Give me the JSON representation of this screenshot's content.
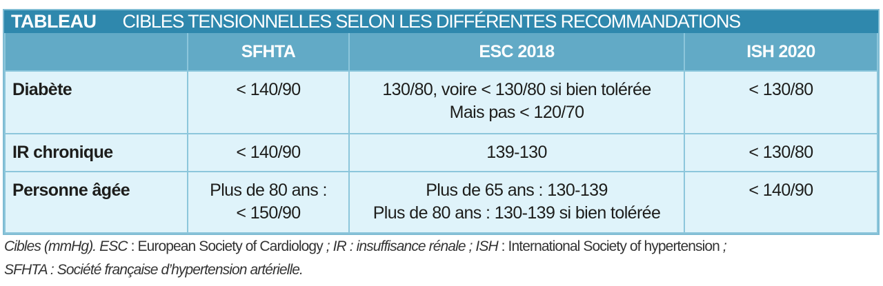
{
  "title": {
    "label": "TABLEAU",
    "text": "CIBLES TENSIONNELLES SELON LES DIFFÉRENTES RECOMMANDATIONS"
  },
  "columns": [
    "",
    "SFHTA",
    "ESC 2018",
    "ISH 2020"
  ],
  "rows": [
    {
      "label": "Diabète",
      "sfhta": [
        "< 140/90"
      ],
      "esc": [
        "130/80, voire < 130/80 si bien tolérée",
        "Mais pas < 120/70"
      ],
      "ish": [
        "< 130/80"
      ]
    },
    {
      "label": "IR chronique",
      "sfhta": [
        "< 140/90"
      ],
      "esc": [
        "139-130"
      ],
      "ish": [
        "< 130/80"
      ]
    },
    {
      "label": "Personne âgée",
      "sfhta": [
        "Plus de 80 ans :",
        "< 150/90"
      ],
      "esc": [
        "Plus de 65 ans : 130-139",
        "Plus de 80 ans : 130-139 si bien tolérée"
      ],
      "ish": [
        "< 140/90"
      ]
    }
  ],
  "footnote": {
    "s1": "Cibles (mmHg). ESC",
    "s2": " : European Society of Cardiology",
    "s3": " ; IR : insuffisance rénale ; ISH",
    "s4": " : International Society of hypertension",
    "s5": " ;",
    "s6": "SFHTA : Société française d’hypertension artérielle."
  },
  "colors": {
    "title_bg": "#2f88ad",
    "header_bg": "#62aac6",
    "cell_bg": "#dff3fa",
    "border": "#8cc6db"
  }
}
